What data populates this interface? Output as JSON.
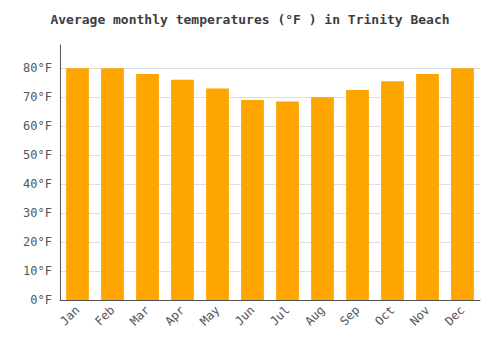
{
  "chart_data": {
    "type": "bar",
    "title": "Average monthly temperatures (°F ) in Trinity Beach",
    "categories": [
      "Jan",
      "Feb",
      "Mar",
      "Apr",
      "May",
      "Jun",
      "Jul",
      "Aug",
      "Sep",
      "Oct",
      "Nov",
      "Dec"
    ],
    "values": [
      80,
      80,
      78,
      76,
      73,
      69,
      68.5,
      70,
      72.5,
      75.5,
      78,
      80
    ],
    "color": "#FFA500",
    "ylim": [
      0,
      88
    ],
    "yticks": [
      {
        "value": 0,
        "label": "0°F"
      },
      {
        "value": 10,
        "label": "10°F"
      },
      {
        "value": 20,
        "label": "20°F"
      },
      {
        "value": 30,
        "label": "30°F"
      },
      {
        "value": 40,
        "label": "40°F"
      },
      {
        "value": 50,
        "label": "50°F"
      },
      {
        "value": 60,
        "label": "60°F"
      },
      {
        "value": 70,
        "label": "70°F"
      },
      {
        "value": 80,
        "label": "80°F"
      }
    ],
    "grid": true
  }
}
